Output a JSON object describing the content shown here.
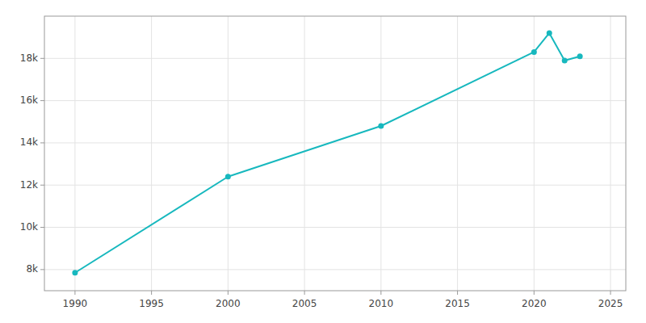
{
  "chart_data": {
    "type": "line",
    "x": [
      1990,
      2000,
      2010,
      2020,
      2021,
      2022,
      2023
    ],
    "values": [
      7850,
      12400,
      14800,
      18300,
      19200,
      17900,
      18100
    ],
    "color": "#17b8be",
    "marker": "circle",
    "xlim": [
      1988,
      2026
    ],
    "ylim": [
      7000,
      20000
    ],
    "xticks": [
      1990,
      1995,
      2000,
      2005,
      2010,
      2015,
      2020,
      2025
    ],
    "yticks": [
      {
        "value": 8000,
        "label": "8k"
      },
      {
        "value": 10000,
        "label": "10k"
      },
      {
        "value": 12000,
        "label": "12k"
      },
      {
        "value": 14000,
        "label": "14k"
      },
      {
        "value": 16000,
        "label": "16k"
      },
      {
        "value": 18000,
        "label": "18k"
      }
    ],
    "grid": true
  }
}
